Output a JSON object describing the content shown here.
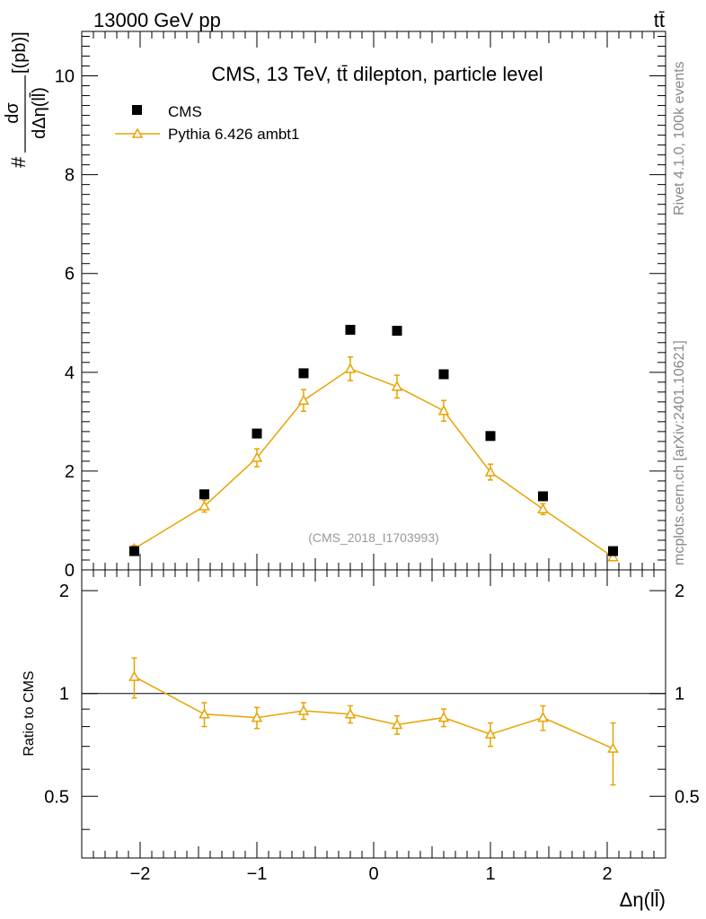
{
  "header": {
    "energy_label": "13000 GeV pp",
    "process_label": "tt̄"
  },
  "side": {
    "rivet_label": "Rivet 4.1.0,  100k events",
    "mcplots_label": "mcplots.cern.ch [arXiv:2401.10621]"
  },
  "chart_data": {
    "type": "scatter",
    "title": "CMS, 13 TeV, tt̄ dilepton, particle level",
    "analysis_tag": "(CMS_2018_I1703993)",
    "ylabel": "# dσ/dΔη(ll̄) [(pb)]",
    "ylabel_parts": {
      "prefix": "#",
      "num": "dσ",
      "den": "dΔη(ll̄)",
      "unit": "[(pb)]"
    },
    "xlabel": "Δη(ll̄)",
    "ratio_ylabel": "Ratio to CMS",
    "xlim": [
      -2.5,
      2.5
    ],
    "ylim": [
      0,
      10.9
    ],
    "ratio_ylim": [
      0.33,
      2.3
    ],
    "x_ticks": [
      -2,
      -1,
      0,
      1,
      2
    ],
    "x_tick_labels": [
      "−2",
      "−1",
      "0",
      "1",
      "2"
    ],
    "y_ticks": [
      0,
      2,
      4,
      6,
      8,
      10
    ],
    "y_tick_labels": [
      "0",
      "2",
      "4",
      "6",
      "8",
      "10"
    ],
    "ratio_ticks": [
      0.5,
      1,
      2
    ],
    "ratio_tick_labels": [
      "0.5",
      "1",
      "2"
    ],
    "x": [
      -2.05,
      -1.45,
      -1.0,
      -0.6,
      -0.2,
      0.2,
      0.6,
      1.0,
      1.45,
      2.05
    ],
    "series": [
      {
        "name": "CMS",
        "marker": "square",
        "color": "#000000",
        "values": [
          0.38,
          1.53,
          2.76,
          3.98,
          4.86,
          4.84,
          3.96,
          2.71,
          1.49,
          0.38
        ]
      },
      {
        "name": "Pythia 6.426 ambt1",
        "marker": "open-triangle",
        "color": "#e8a300",
        "values": [
          0.43,
          1.29,
          2.27,
          3.43,
          4.07,
          3.71,
          3.22,
          1.98,
          1.23,
          0.26
        ],
        "errors": [
          0.06,
          0.12,
          0.18,
          0.22,
          0.24,
          0.23,
          0.21,
          0.16,
          0.11,
          0.04
        ]
      }
    ],
    "ratio": {
      "reference": 1,
      "values": [
        1.12,
        0.87,
        0.85,
        0.89,
        0.87,
        0.81,
        0.85,
        0.76,
        0.85,
        0.69
      ],
      "errors_up": [
        0.15,
        0.07,
        0.06,
        0.05,
        0.05,
        0.05,
        0.05,
        0.06,
        0.07,
        0.13
      ],
      "errors_down": [
        0.15,
        0.07,
        0.06,
        0.05,
        0.05,
        0.05,
        0.05,
        0.06,
        0.07,
        0.15
      ]
    },
    "legend_position": "top-left"
  }
}
